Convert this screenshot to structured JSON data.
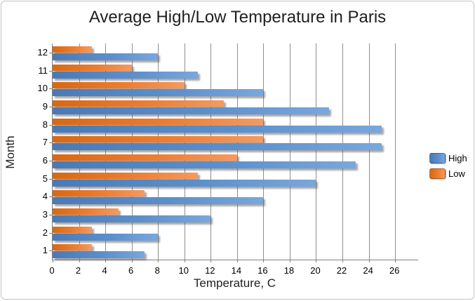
{
  "chart_data": {
    "type": "bar",
    "orientation": "horizontal",
    "title": "Average High/Low Temperature in Paris",
    "xlabel": "Temperature, C",
    "ylabel": "Month",
    "categories": [
      1,
      2,
      3,
      4,
      5,
      6,
      7,
      8,
      9,
      10,
      11,
      12
    ],
    "series": [
      {
        "name": "High",
        "color_dark": "#4a7ab6",
        "color_main": "#5b8fcb",
        "color_light": "#79a7de",
        "values": [
          7,
          8,
          12,
          16,
          20,
          23,
          25,
          25,
          21,
          16,
          11,
          8
        ]
      },
      {
        "name": "Low",
        "color_dark": "#d96812",
        "color_main": "#ed7d31",
        "color_light": "#f49a60",
        "values": [
          3,
          3,
          5,
          7,
          11,
          14,
          16,
          16,
          13,
          10,
          6,
          3
        ]
      }
    ],
    "x_ticks": [
      0,
      2,
      4,
      6,
      8,
      10,
      12,
      14,
      16,
      18,
      20,
      22,
      24,
      26
    ],
    "xlim": [
      0,
      27.75
    ],
    "grid": true,
    "legend_position": "right",
    "category_order_top_to_bottom": "12 to 1"
  },
  "colors": {
    "gridline": "#8f8f8f",
    "axis": "#7f7f7f",
    "text": "#000000",
    "title_text": "#1f1f1f",
    "frame_border": "#c3c3c3"
  }
}
